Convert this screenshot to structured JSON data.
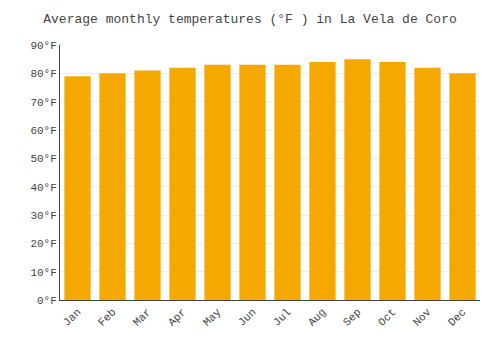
{
  "chart_data": {
    "type": "bar",
    "title": "Average monthly temperatures (°F ) in La Vela de Coro",
    "categories": [
      "Jan",
      "Feb",
      "Mar",
      "Apr",
      "May",
      "Jun",
      "Jul",
      "Aug",
      "Sep",
      "Oct",
      "Nov",
      "Dec"
    ],
    "values": [
      79,
      80,
      81,
      82,
      83,
      83,
      83,
      84,
      85,
      84,
      82,
      80
    ],
    "color": "#F5A800",
    "ylim": [
      0,
      90
    ],
    "yticks": [
      {
        "value": 0,
        "label": "0°F"
      },
      {
        "value": 10,
        "label": "10°F"
      },
      {
        "value": 20,
        "label": "20°F"
      },
      {
        "value": 30,
        "label": "30°F"
      },
      {
        "value": 40,
        "label": "40°F"
      },
      {
        "value": 50,
        "label": "50°F"
      },
      {
        "value": 60,
        "label": "60°F"
      },
      {
        "value": 70,
        "label": "70°F"
      },
      {
        "value": 80,
        "label": "80°F"
      },
      {
        "value": 90,
        "label": "90°F"
      }
    ],
    "grid": true
  }
}
